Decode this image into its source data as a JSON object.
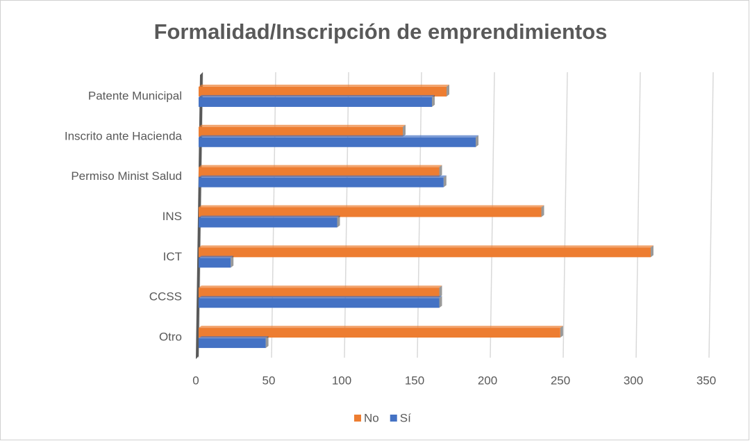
{
  "chart_data": {
    "type": "bar",
    "orientation": "horizontal",
    "title": "Formalidad/Inscripción de emprendimientos",
    "categories": [
      "Patente Municipal",
      "Inscrito ante Hacienda",
      "Permiso Minist Salud",
      "INS",
      "ICT",
      "CCSS",
      "Otro"
    ],
    "series": [
      {
        "name": "No",
        "color": "#ed7d31",
        "values": [
          170,
          140,
          165,
          235,
          310,
          165,
          248
        ]
      },
      {
        "name": "Sí",
        "color": "#4472c4",
        "values": [
          160,
          190,
          168,
          95,
          22,
          165,
          46
        ]
      }
    ],
    "xlim": [
      0,
      350
    ],
    "xticks": [
      0,
      50,
      100,
      150,
      200,
      250,
      300,
      350
    ],
    "grid": true,
    "legend": "bottom"
  }
}
